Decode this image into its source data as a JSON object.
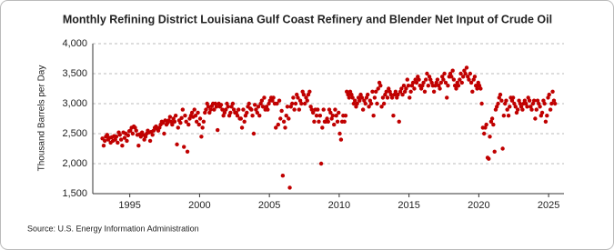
{
  "chart_data": {
    "type": "scatter",
    "title": "Monthly Refining District Louisiana Gulf Coast Refinery and Blender Net Input of Crude Oil",
    "y_label": "Thousand Barrels per Day",
    "source": "Source: U.S. Energy Information Administration",
    "color": "#c00000",
    "grid": true,
    "xlim": [
      1992.35,
      2026.1
    ],
    "ylim": [
      1500,
      4000
    ],
    "xticks": [
      1995,
      2000,
      2005,
      2010,
      2015,
      2020,
      2025
    ],
    "yticks": [
      {
        "value": 1500,
        "label": "1,500"
      },
      {
        "value": 2000,
        "label": "2,000"
      },
      {
        "value": 2500,
        "label": "2,500"
      },
      {
        "value": 3000,
        "label": "3,000"
      },
      {
        "value": 3500,
        "label": "3,500"
      },
      {
        "value": 4000,
        "label": "4,000"
      }
    ],
    "x": [
      1993.04,
      1993.13,
      1993.21,
      1993.29,
      1993.38,
      1993.46,
      1993.54,
      1993.63,
      1993.71,
      1993.79,
      1993.88,
      1993.96,
      1994.04,
      1994.13,
      1994.21,
      1994.29,
      1994.38,
      1994.46,
      1994.54,
      1994.63,
      1994.71,
      1994.79,
      1994.88,
      1994.96,
      1995.04,
      1995.13,
      1995.21,
      1995.29,
      1995.38,
      1995.46,
      1995.54,
      1995.63,
      1995.71,
      1995.79,
      1995.88,
      1995.96,
      1996.04,
      1996.13,
      1996.21,
      1996.29,
      1996.38,
      1996.46,
      1996.54,
      1996.63,
      1996.71,
      1996.79,
      1996.88,
      1996.96,
      1997.04,
      1997.13,
      1997.21,
      1997.29,
      1997.38,
      1997.46,
      1997.54,
      1997.63,
      1997.71,
      1997.79,
      1997.88,
      1997.96,
      1998.04,
      1998.13,
      1998.21,
      1998.29,
      1998.38,
      1998.46,
      1998.54,
      1998.63,
      1998.71,
      1998.79,
      1998.88,
      1998.96,
      1999.04,
      1999.13,
      1999.21,
      1999.29,
      1999.38,
      1999.46,
      1999.54,
      1999.63,
      1999.71,
      1999.79,
      1999.88,
      1999.96,
      2000.04,
      2000.13,
      2000.21,
      2000.29,
      2000.38,
      2000.46,
      2000.54,
      2000.63,
      2000.71,
      2000.79,
      2000.88,
      2000.96,
      2001.04,
      2001.13,
      2001.21,
      2001.29,
      2001.38,
      2001.46,
      2001.54,
      2001.63,
      2001.71,
      2001.79,
      2001.88,
      2001.96,
      2002.04,
      2002.13,
      2002.21,
      2002.29,
      2002.38,
      2002.46,
      2002.54,
      2002.63,
      2002.71,
      2002.79,
      2002.88,
      2002.96,
      2003.04,
      2003.13,
      2003.21,
      2003.29,
      2003.38,
      2003.46,
      2003.54,
      2003.63,
      2003.71,
      2003.79,
      2003.88,
      2003.96,
      2004.04,
      2004.13,
      2004.21,
      2004.29,
      2004.38,
      2004.46,
      2004.54,
      2004.63,
      2004.71,
      2004.79,
      2004.88,
      2004.96,
      2005.04,
      2005.13,
      2005.21,
      2005.29,
      2005.38,
      2005.46,
      2005.54,
      2005.63,
      2005.71,
      2005.79,
      2005.88,
      2005.96,
      2006.04,
      2006.13,
      2006.21,
      2006.29,
      2006.38,
      2006.46,
      2006.54,
      2006.63,
      2006.71,
      2006.79,
      2006.88,
      2006.96,
      2007.04,
      2007.13,
      2007.21,
      2007.29,
      2007.38,
      2007.46,
      2007.54,
      2007.63,
      2007.71,
      2007.79,
      2007.88,
      2007.96,
      2008.04,
      2008.13,
      2008.21,
      2008.29,
      2008.38,
      2008.46,
      2008.54,
      2008.63,
      2008.71,
      2008.79,
      2008.88,
      2008.96,
      2009.04,
      2009.13,
      2009.21,
      2009.29,
      2009.38,
      2009.46,
      2009.54,
      2009.63,
      2009.71,
      2009.79,
      2009.88,
      2009.96,
      2010.04,
      2010.13,
      2010.21,
      2010.29,
      2010.38,
      2010.46,
      2010.54,
      2010.63,
      2010.71,
      2010.79,
      2010.88,
      2010.96,
      2011.04,
      2011.13,
      2011.21,
      2011.29,
      2011.38,
      2011.46,
      2011.54,
      2011.63,
      2011.71,
      2011.79,
      2011.88,
      2011.96,
      2012.04,
      2012.13,
      2012.21,
      2012.29,
      2012.38,
      2012.46,
      2012.54,
      2012.63,
      2012.71,
      2012.79,
      2012.88,
      2012.96,
      2013.04,
      2013.13,
      2013.21,
      2013.29,
      2013.38,
      2013.46,
      2013.54,
      2013.63,
      2013.71,
      2013.79,
      2013.88,
      2013.96,
      2014.04,
      2014.13,
      2014.21,
      2014.29,
      2014.38,
      2014.46,
      2014.54,
      2014.63,
      2014.71,
      2014.79,
      2014.88,
      2014.96,
      2015.04,
      2015.13,
      2015.21,
      2015.29,
      2015.38,
      2015.46,
      2015.54,
      2015.63,
      2015.71,
      2015.79,
      2015.88,
      2015.96,
      2016.04,
      2016.13,
      2016.21,
      2016.29,
      2016.38,
      2016.46,
      2016.54,
      2016.63,
      2016.71,
      2016.79,
      2016.88,
      2016.96,
      2017.04,
      2017.13,
      2017.21,
      2017.29,
      2017.38,
      2017.46,
      2017.54,
      2017.63,
      2017.71,
      2017.79,
      2017.88,
      2017.96,
      2018.04,
      2018.13,
      2018.21,
      2018.29,
      2018.38,
      2018.46,
      2018.54,
      2018.63,
      2018.71,
      2018.79,
      2018.88,
      2018.96,
      2019.04,
      2019.13,
      2019.21,
      2019.29,
      2019.38,
      2019.46,
      2019.54,
      2019.63,
      2019.71,
      2019.79,
      2019.88,
      2019.96,
      2020.04,
      2020.13,
      2020.21,
      2020.29,
      2020.38,
      2020.46,
      2020.54,
      2020.63,
      2020.71,
      2020.79,
      2020.88,
      2020.96,
      2021.04,
      2021.13,
      2021.21,
      2021.29,
      2021.38,
      2021.46,
      2021.54,
      2021.63,
      2021.71,
      2021.79,
      2021.88,
      2021.96,
      2022.04,
      2022.13,
      2022.21,
      2022.29,
      2022.38,
      2022.46,
      2022.54,
      2022.63,
      2022.71,
      2022.79,
      2022.88,
      2022.96,
      2023.04,
      2023.13,
      2023.21,
      2023.29,
      2023.38,
      2023.46,
      2023.54,
      2023.63,
      2023.71,
      2023.79,
      2023.88,
      2023.96,
      2024.04,
      2024.13,
      2024.21,
      2024.29,
      2024.38,
      2024.46,
      2024.54,
      2024.63,
      2024.71,
      2024.79,
      2024.88,
      2024.96,
      2025.04,
      2025.13,
      2025.21,
      2025.29,
      2025.38,
      2025.46
    ],
    "values": [
      2420,
      2300,
      2380,
      2450,
      2480,
      2400,
      2430,
      2350,
      2440,
      2380,
      2460,
      2400,
      2450,
      2350,
      2520,
      2480,
      2400,
      2300,
      2520,
      2430,
      2500,
      2380,
      2470,
      2540,
      2550,
      2600,
      2500,
      2620,
      2600,
      2550,
      2480,
      2300,
      2490,
      2450,
      2520,
      2480,
      2400,
      2450,
      2500,
      2550,
      2520,
      2380,
      2530,
      2480,
      2550,
      2600,
      2620,
      2580,
      2550,
      2600,
      2650,
      2700,
      2680,
      2500,
      2720,
      2650,
      2680,
      2720,
      2780,
      2700,
      2650,
      2750,
      2700,
      2800,
      2320,
      2600,
      2720,
      2680,
      2760,
      2900,
      2280,
      2800,
      2700,
      2200,
      2650,
      2750,
      2800,
      2850,
      2780,
      2900,
      2800,
      2700,
      2850,
      2650,
      2750,
      2450,
      2600,
      2700,
      2850,
      2900,
      3000,
      2950,
      2850,
      2900,
      2960,
      3000,
      2900,
      3000,
      2950,
      2560,
      3000,
      2950,
      2980,
      2900,
      2800,
      2850,
      2900,
      3000,
      2950,
      2800,
      2850,
      2950,
      3000,
      2900,
      2850,
      2850,
      2800,
      2900,
      2750,
      2750,
      2600,
      2900,
      2700,
      2800,
      2850,
      2950,
      3000,
      2920,
      2900,
      2800,
      2500,
      2980,
      2900,
      2850,
      2950,
      2800,
      3000,
      3050,
      2950,
      3100,
      2900,
      2950,
      2900,
      3000,
      3050,
      3100,
      3050,
      3100,
      3000,
      2600,
      3000,
      2650,
      3050,
      2750,
      2880,
      1800,
      2700,
      2600,
      2800,
      2950,
      2750,
      1600,
      2950,
      3000,
      3100,
      2900,
      3000,
      3150,
      3100,
      2900,
      3050,
      3000,
      3200,
      3150,
      3000,
      3100,
      3050,
      3150,
      3200,
      2950,
      2900,
      2850,
      2700,
      2900,
      2800,
      2900,
      2700,
      2800,
      2000,
      2600,
      2900,
      2700,
      2700,
      2750,
      2700,
      2900,
      2850,
      2750,
      2800,
      2650,
      2900,
      2800,
      2700,
      2850,
      2500,
      2400,
      2700,
      2800,
      2700,
      2800,
      3200,
      3150,
      3100,
      3200,
      3150,
      3100,
      3000,
      3050,
      2950,
      3000,
      3100,
      3050,
      3150,
      3100,
      2900,
      3050,
      3000,
      3100,
      3150,
      2950,
      3050,
      3000,
      3200,
      2800,
      3100,
      3200,
      3000,
      3250,
      3350,
      3300,
      2950,
      3100,
      3000,
      3150,
      3200,
      3100,
      3250,
      3200,
      3150,
      3100,
      2800,
      3150,
      3200,
      3100,
      3150,
      2700,
      3200,
      3250,
      3150,
      3300,
      3200,
      3250,
      3400,
      3300,
      3100,
      3200,
      3300,
      3350,
      3250,
      3400,
      3350,
      3450,
      3400,
      3300,
      3250,
      3300,
      3350,
      3200,
      3400,
      3500,
      3300,
      3450,
      3400,
      3350,
      3300,
      3200,
      3300,
      3350,
      3400,
      3300,
      3250,
      3350,
      3450,
      3400,
      3500,
      3350,
      3100,
      3300,
      3450,
      3500,
      3450,
      3550,
      3400,
      3300,
      3250,
      3350,
      3300,
      3400,
      3500,
      3350,
      3450,
      3550,
      3500,
      3600,
      3450,
      3400,
      3500,
      3350,
      3200,
      3400,
      3450,
      3300,
      3250,
      3350,
      3300,
      3250,
      3000,
      2600,
      2500,
      2600,
      2650,
      2100,
      2080,
      2450,
      2700,
      2750,
      2650,
      2200,
      2900,
      2950,
      3000,
      3100,
      3150,
      3050,
      2250,
      2800,
      3000,
      3050,
      2900,
      2800,
      2950,
      3100,
      3050,
      3100,
      3000,
      2950,
      2850,
      2900,
      3050,
      3000,
      2950,
      2900,
      3000,
      3050,
      3000,
      2950,
      3100,
      3050,
      2950,
      2900,
      3000,
      3050,
      2750,
      2900,
      3050,
      3000,
      2950,
      2800,
      2850,
      3050,
      3000,
      2700,
      2800,
      3100,
      3150,
      2900,
      3000,
      3200,
      3050,
      3000
    ]
  }
}
